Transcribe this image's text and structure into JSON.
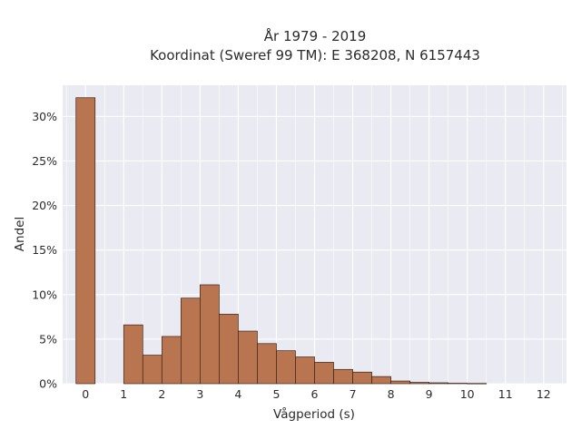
{
  "chart_data": {
    "type": "bar",
    "title_line1": "År 1979 - 2019",
    "title_line2": "Koordinat (Sweref 99 TM): E 368208, N 6157443",
    "xlabel": "Vågperiod (s)",
    "ylabel": "Andel",
    "x_ticks": [
      "0",
      "1",
      "2",
      "3",
      "4",
      "5",
      "6",
      "7",
      "8",
      "9",
      "10",
      "11",
      "12"
    ],
    "y_ticks": [
      "0%",
      "5%",
      "10%",
      "15%",
      "20%",
      "25%",
      "30%"
    ],
    "xlim": [
      -0.6,
      12.6
    ],
    "ylim": [
      0,
      33.5
    ],
    "grid": true,
    "bar_color": "#b87550",
    "bar_edge_color": "#3a2418",
    "background_color": "#eaeaf2",
    "bins": [
      {
        "x0": -0.25,
        "x1": 0.25,
        "value": 32.1
      },
      {
        "x0": 1.0,
        "x1": 1.5,
        "value": 6.6
      },
      {
        "x0": 1.5,
        "x1": 2.0,
        "value": 3.2
      },
      {
        "x0": 2.0,
        "x1": 2.5,
        "value": 5.3
      },
      {
        "x0": 2.5,
        "x1": 3.0,
        "value": 9.6
      },
      {
        "x0": 3.0,
        "x1": 3.5,
        "value": 11.1
      },
      {
        "x0": 3.5,
        "x1": 4.0,
        "value": 7.8
      },
      {
        "x0": 4.0,
        "x1": 4.5,
        "value": 5.9
      },
      {
        "x0": 4.5,
        "x1": 5.0,
        "value": 4.5
      },
      {
        "x0": 5.0,
        "x1": 5.5,
        "value": 3.7
      },
      {
        "x0": 5.5,
        "x1": 6.0,
        "value": 3.0
      },
      {
        "x0": 6.0,
        "x1": 6.5,
        "value": 2.4
      },
      {
        "x0": 6.5,
        "x1": 7.0,
        "value": 1.6
      },
      {
        "x0": 7.0,
        "x1": 7.5,
        "value": 1.3
      },
      {
        "x0": 7.5,
        "x1": 8.0,
        "value": 0.8
      },
      {
        "x0": 8.0,
        "x1": 8.5,
        "value": 0.3
      },
      {
        "x0": 8.5,
        "x1": 9.0,
        "value": 0.15
      },
      {
        "x0": 9.0,
        "x1": 9.5,
        "value": 0.1
      },
      {
        "x0": 9.5,
        "x1": 10.0,
        "value": 0.05
      },
      {
        "x0": 10.0,
        "x1": 10.5,
        "value": 0.03
      }
    ]
  }
}
